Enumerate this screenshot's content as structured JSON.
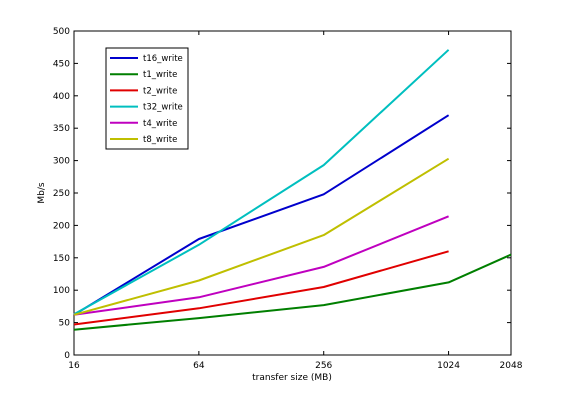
{
  "chart_data": {
    "type": "line",
    "title": "",
    "xlabel": "transfer size (MB)",
    "ylabel": "Mb/s",
    "x_scale": "log2",
    "x_ticks": [
      16,
      64,
      256,
      1024,
      2048
    ],
    "x_tick_labels": [
      "16",
      "64",
      "256",
      "1024",
      "2048"
    ],
    "xlim": [
      16,
      2048
    ],
    "ylim": [
      0,
      500
    ],
    "y_ticks": [
      0,
      50,
      100,
      150,
      200,
      250,
      300,
      350,
      400,
      450,
      500
    ],
    "y_tick_labels": [
      "0",
      "50",
      "100",
      "150",
      "200",
      "250",
      "300",
      "350",
      "400",
      "450",
      "500"
    ],
    "grid": false,
    "legend_position": "top-left",
    "series": [
      {
        "name": "t16_write",
        "color": "#0000cc",
        "x": [
          16,
          64,
          256,
          1024
        ],
        "values": [
          62,
          179,
          248,
          370
        ]
      },
      {
        "name": "t1_write",
        "color": "#007f00",
        "x": [
          16,
          64,
          256,
          1024,
          2048
        ],
        "values": [
          39,
          57,
          77,
          112,
          155
        ]
      },
      {
        "name": "t2_write",
        "color": "#e00000",
        "x": [
          16,
          64,
          256,
          1024
        ],
        "values": [
          47,
          72,
          105,
          160
        ]
      },
      {
        "name": "t32_write",
        "color": "#00bfbf",
        "x": [
          16,
          64,
          256,
          1024
        ],
        "values": [
          63,
          170,
          293,
          471
        ]
      },
      {
        "name": "t4_write",
        "color": "#bf00bf",
        "x": [
          16,
          64,
          256,
          1024
        ],
        "values": [
          62,
          89,
          136,
          214
        ]
      },
      {
        "name": "t8_write",
        "color": "#bfbf00",
        "x": [
          16,
          64,
          256,
          1024
        ],
        "values": [
          62,
          115,
          185,
          303
        ]
      }
    ]
  }
}
